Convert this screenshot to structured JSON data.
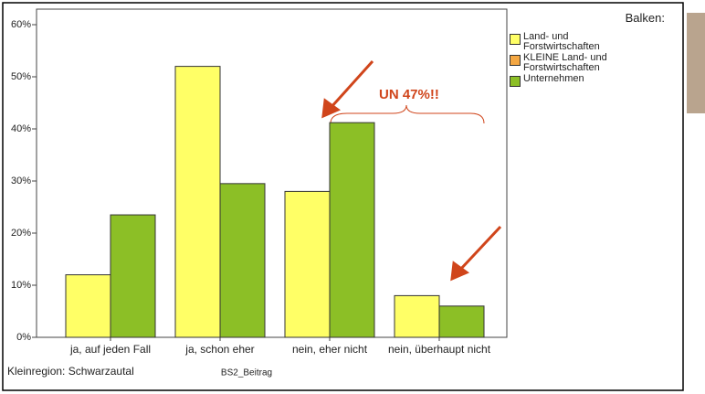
{
  "chart_data": {
    "type": "bar",
    "categories": [
      "ja, auf jeden Fall",
      "ja, schon eher",
      "nein, eher nicht",
      "nein, überhaupt nicht"
    ],
    "series": [
      {
        "name": "Land- und Forstwirtschaften",
        "color": "#ffff66",
        "values": [
          12,
          52,
          28,
          8
        ]
      },
      {
        "name": "KLEINE Land- und Forstwirtschaften",
        "color": "#f4a742",
        "values": [
          null,
          null,
          null,
          null
        ]
      },
      {
        "name": "Unternehmen",
        "color": "#8cbf26",
        "values": [
          23.5,
          29.5,
          41.2,
          6
        ]
      }
    ],
    "ylim": [
      0,
      60
    ],
    "yticks": [
      {
        "value": 0,
        "label": "0%"
      },
      {
        "value": 10,
        "label": "10%"
      },
      {
        "value": 20,
        "label": "20%"
      },
      {
        "value": 30,
        "label": "30%"
      },
      {
        "value": 40,
        "label": "40%"
      },
      {
        "value": 50,
        "label": "50%"
      },
      {
        "value": 60,
        "label": "60%"
      }
    ],
    "legend_title": "Balken:",
    "annotation": "UN 47%!!",
    "x_label": "BS2_Beitrag",
    "footnote": "Kleinregion: Schwarzautal"
  }
}
